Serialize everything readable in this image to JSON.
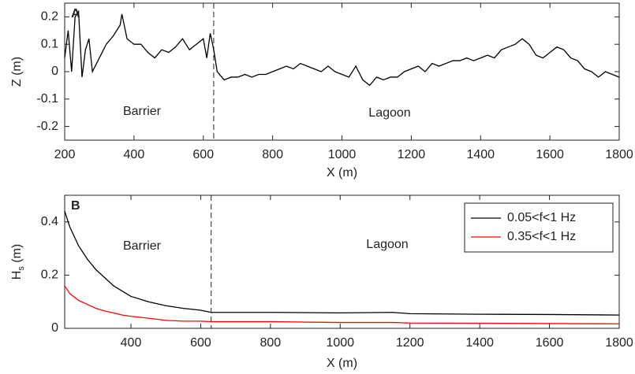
{
  "chart_data": [
    {
      "type": "line",
      "panel_label": "A",
      "xlabel": "X (m)",
      "ylabel": "Z (m)",
      "xlim": [
        200,
        1800
      ],
      "xticks": [
        200,
        400,
        600,
        800,
        1000,
        1200,
        1400,
        1600,
        1800
      ],
      "ylim": [
        -0.25,
        0.25
      ],
      "yticks": [
        -0.2,
        -0.1,
        0,
        0.1,
        0.2
      ],
      "vline": 630,
      "annotations": [
        "Barrier",
        "Lagoon"
      ],
      "x": [
        200,
        210,
        220,
        230,
        240,
        250,
        260,
        270,
        280,
        300,
        320,
        340,
        360,
        365,
        380,
        400,
        420,
        440,
        460,
        480,
        500,
        520,
        540,
        560,
        580,
        600,
        610,
        620,
        630,
        640,
        660,
        680,
        700,
        720,
        740,
        760,
        780,
        800,
        820,
        840,
        860,
        880,
        900,
        920,
        940,
        960,
        980,
        1000,
        1020,
        1040,
        1060,
        1080,
        1100,
        1120,
        1140,
        1160,
        1180,
        1200,
        1220,
        1240,
        1260,
        1280,
        1300,
        1320,
        1340,
        1360,
        1380,
        1400,
        1420,
        1440,
        1460,
        1480,
        1500,
        1520,
        1540,
        1560,
        1580,
        1600,
        1620,
        1640,
        1660,
        1680,
        1700,
        1720,
        1740,
        1760,
        1780,
        1800
      ],
      "series": [
        {
          "color": "#000000",
          "values": [
            0.05,
            0.15,
            0.0,
            0.2,
            0.22,
            -0.02,
            0.08,
            0.12,
            0.0,
            0.05,
            0.1,
            0.13,
            0.17,
            0.21,
            0.12,
            0.1,
            0.1,
            0.07,
            0.05,
            0.08,
            0.07,
            0.09,
            0.12,
            0.08,
            0.1,
            0.12,
            0.05,
            0.14,
            0.08,
            0.0,
            -0.03,
            -0.02,
            -0.02,
            -0.01,
            -0.02,
            -0.01,
            -0.01,
            0.0,
            0.01,
            0.02,
            0.01,
            0.03,
            0.02,
            0.01,
            0.0,
            0.02,
            0.0,
            -0.01,
            -0.02,
            0.02,
            -0.03,
            -0.05,
            -0.02,
            -0.03,
            -0.02,
            -0.02,
            0.0,
            0.01,
            0.02,
            0.0,
            0.03,
            0.02,
            0.03,
            0.04,
            0.04,
            0.05,
            0.04,
            0.05,
            0.06,
            0.05,
            0.08,
            0.09,
            0.1,
            0.12,
            0.1,
            0.06,
            0.05,
            0.07,
            0.09,
            0.08,
            0.05,
            0.04,
            0.01,
            0.0,
            -0.02,
            0.0,
            -0.01,
            -0.02
          ]
        }
      ]
    },
    {
      "type": "line",
      "panel_label": "B",
      "xlabel": "X (m)",
      "ylabel": [
        "H",
        "s",
        " (m)"
      ],
      "xlim": [
        210,
        1800
      ],
      "xticks": [
        400,
        600,
        800,
        1000,
        1200,
        1400,
        1600,
        1800
      ],
      "ylim": [
        0,
        0.5
      ],
      "yticks": [
        0,
        0.2,
        0.4
      ],
      "vline": 630,
      "annotations": [
        "Barrier",
        "Lagoon"
      ],
      "legend": "upper right",
      "x": [
        210,
        225,
        250,
        275,
        300,
        325,
        350,
        375,
        400,
        450,
        500,
        550,
        600,
        630,
        700,
        800,
        1000,
        1150,
        1200,
        1400,
        1600,
        1800
      ],
      "series": [
        {
          "name": "0.05<f<1 Hz",
          "color": "#000000",
          "values": [
            0.44,
            0.38,
            0.31,
            0.26,
            0.22,
            0.19,
            0.16,
            0.14,
            0.12,
            0.1,
            0.085,
            0.075,
            0.068,
            0.06,
            0.06,
            0.06,
            0.058,
            0.06,
            0.055,
            0.053,
            0.052,
            0.05
          ]
        },
        {
          "name": "0.35<f<1 Hz",
          "color": "#ff0000",
          "values": [
            0.16,
            0.13,
            0.105,
            0.09,
            0.075,
            0.065,
            0.058,
            0.05,
            0.045,
            0.038,
            0.03,
            0.027,
            0.027,
            0.025,
            0.025,
            0.025,
            0.022,
            0.022,
            0.02,
            0.019,
            0.018,
            0.017
          ]
        }
      ]
    }
  ]
}
